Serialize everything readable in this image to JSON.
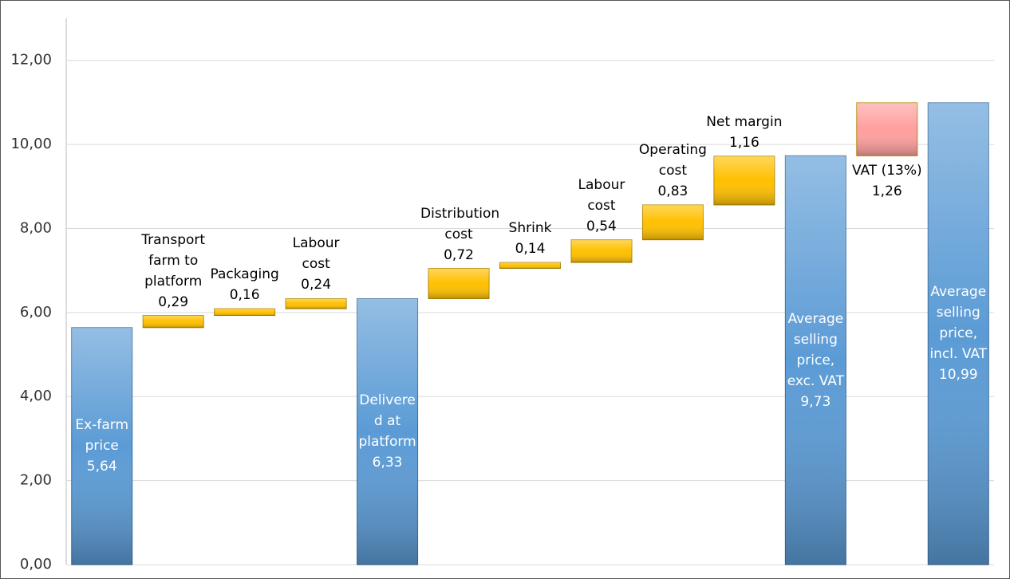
{
  "chart_data": {
    "type": "waterfall",
    "categories": [
      "Ex-farm price",
      "Transport farm to platform",
      "Packaging",
      "Labour cost",
      "Delivered at platform",
      "Distribution cost",
      "Shrink",
      "Labour cost",
      "Operating cost",
      "Net margin",
      "Average selling price, exc. VAT",
      "VAT (13%)",
      "Average selling price, incl. VAT"
    ],
    "values": [
      5.64,
      0.29,
      0.16,
      0.24,
      6.33,
      0.72,
      0.14,
      0.54,
      0.83,
      1.16,
      9.73,
      1.26,
      10.99
    ],
    "value_labels": [
      "5,64",
      "0,29",
      "0,16",
      "0,24",
      "6,33",
      "0,72",
      "0,14",
      "0,54",
      "0,83",
      "1,16",
      "9,73",
      "1,26",
      "10,99"
    ],
    "measures": [
      "total",
      "relative",
      "relative",
      "relative",
      "total",
      "relative",
      "relative",
      "relative",
      "relative",
      "relative",
      "total",
      "relative",
      "total"
    ],
    "colors": [
      "#5b9bd5",
      "#ffc000",
      "#ffc000",
      "#ffc000",
      "#5b9bd5",
      "#ffc000",
      "#ffc000",
      "#ffc000",
      "#ffc000",
      "#ffc000",
      "#5b9bd5",
      "#ff9f9f",
      "#5b9bd5"
    ],
    "ylim": [
      0,
      13
    ],
    "yticks": [
      {
        "value": 0,
        "label": "0,00"
      },
      {
        "value": 2,
        "label": "2,00"
      },
      {
        "value": 4,
        "label": "4,00"
      },
      {
        "value": 6,
        "label": "6,00"
      },
      {
        "value": 8,
        "label": "8,00"
      },
      {
        "value": 10,
        "label": "10,00"
      },
      {
        "value": 12,
        "label": "12,00"
      }
    ],
    "grid": true
  }
}
